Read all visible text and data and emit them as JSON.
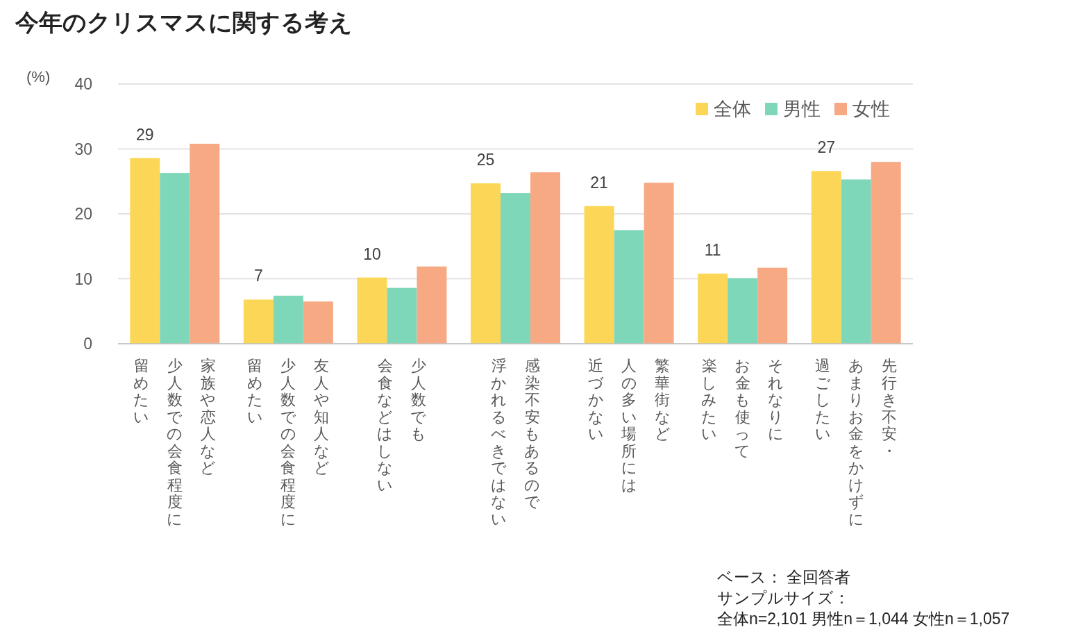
{
  "chart_data": {
    "type": "bar",
    "title": "今年のクリスマスに関する考え",
    "ylabel": "(%)",
    "categories": [
      "家族や恋人など少人数での会食程度に留めたい",
      "友人や知人など少人数での会食程度に留めたい",
      "少人数でも会食などはしない",
      "感染不安もあるので浮かれるべきではない",
      "繁華街など人の多い場所には近づかない",
      "それなりにお金も使って楽しみたい",
      "先行き不安・あまりお金をかけずに過ごしたい"
    ],
    "series": [
      {
        "name": "全体",
        "color": "#fcd757",
        "values": [
          28.6,
          6.8,
          10.2,
          24.7,
          21.2,
          10.8,
          26.6
        ],
        "value_labels": [
          "29",
          "7",
          "10",
          "25",
          "21",
          "11",
          "27"
        ]
      },
      {
        "name": "男性",
        "color": "#7fd7b9",
        "values": [
          26.3,
          7.4,
          8.6,
          23.2,
          17.5,
          10.1,
          25.3
        ]
      },
      {
        "name": "女性",
        "color": "#f7a984",
        "values": [
          30.8,
          6.5,
          11.9,
          26.4,
          24.8,
          11.7,
          28.0
        ]
      }
    ],
    "ylim": [
      0,
      40
    ],
    "yticks": [
      0,
      10,
      20,
      30,
      40
    ],
    "grid": "y",
    "legend": "top right",
    "annotations": [
      "ベース： 全回答者",
      "サンプルサイズ：",
      "全体n=2,101 男性n＝1,044 女性n＝1,057"
    ]
  }
}
